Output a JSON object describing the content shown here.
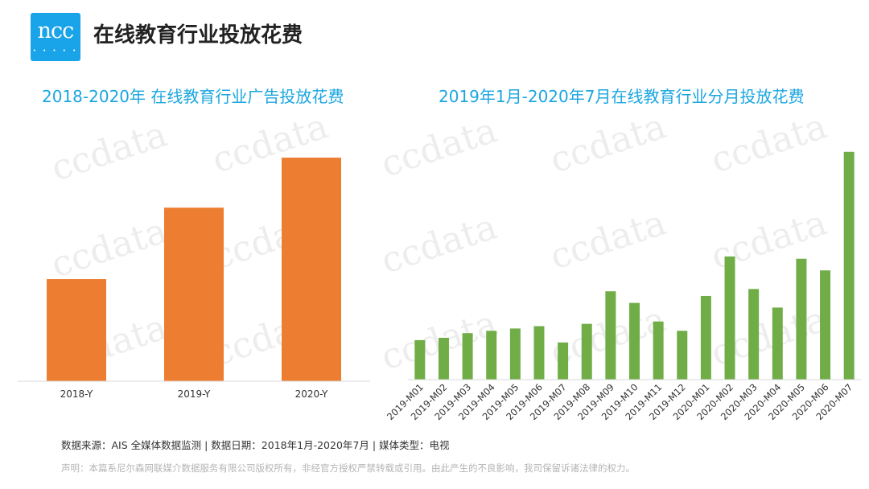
{
  "header": {
    "logo_text": "ncc",
    "logo_dots": "• • • • •",
    "title": "在线教育行业投放花费"
  },
  "watermark": "ccdata",
  "colors": {
    "logo_bg": "#19a3e8",
    "title_blue": "#1ba6e0",
    "bar_orange": "#ed7d31",
    "bar_green": "#70ad47",
    "axis": "#d9d9d9",
    "watermark": "#ededed"
  },
  "chart_data": [
    {
      "type": "bar",
      "title": "2018-2020年 在线教育行业广告投放花费",
      "categories": [
        "2018-Y",
        "2019-Y",
        "2020-Y"
      ],
      "values": [
        100,
        170,
        219
      ],
      "ylim": [
        0,
        230
      ],
      "xlabel": "",
      "ylabel": "",
      "grid": false
    },
    {
      "type": "bar",
      "title": "2019年1月-2020年7月在线教育行业分月投放花费",
      "categories": [
        "2019-M01",
        "2019-M02",
        "2019-M03",
        "2019-M04",
        "2019-M05",
        "2019-M06",
        "2019-M07",
        "2019-M08",
        "2019-M09",
        "2019-M10",
        "2019-M11",
        "2019-M12",
        "2020-M01",
        "2020-M02",
        "2020-M03",
        "2020-M04",
        "2020-M05",
        "2020-M06",
        "2020-M07"
      ],
      "values": [
        17,
        18,
        20,
        21,
        22,
        23,
        16,
        24,
        38,
        33,
        25,
        21,
        36,
        53,
        39,
        31,
        52,
        47,
        98
      ],
      "ylim": [
        0,
        100
      ],
      "xlabel": "",
      "ylabel": "",
      "grid": false
    }
  ],
  "footer": {
    "source": "数据来源：AIS 全媒体数据监测 | 数据日期：2018年1月-2020年7月 | 媒体类型：电视",
    "disclaimer": "声明：本篇系尼尔森网联媒介数据服务有限公司版权所有，非经官方授权严禁转载或引用。由此产生的不良影响，我司保留诉诸法律的权力。"
  }
}
